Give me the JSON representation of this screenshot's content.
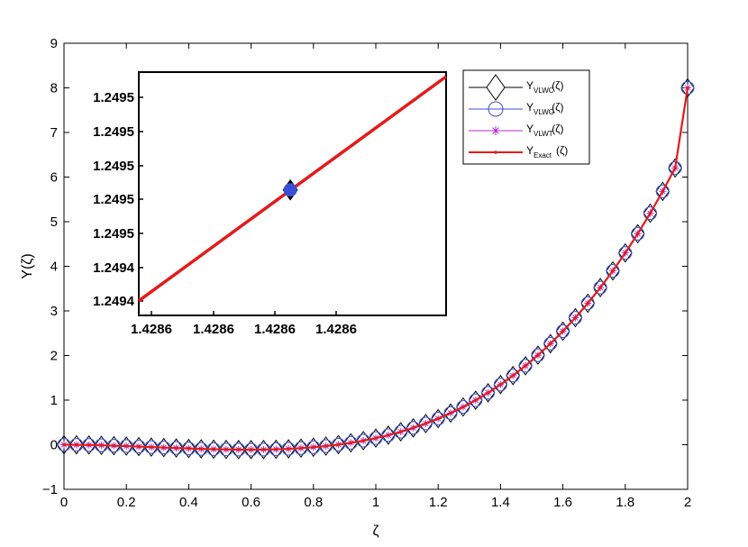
{
  "chart_data": [
    {
      "type": "line",
      "role": "main",
      "xlabel": "ζ",
      "ylabel": "Y(ζ)",
      "xlim": [
        0,
        2
      ],
      "ylim": [
        -1,
        9
      ],
      "x_ticks": [
        "0",
        "0.2",
        "0.4",
        "0.6",
        "0.8",
        "1",
        "1.2",
        "1.4",
        "1.6",
        "1.8",
        "2"
      ],
      "y_ticks": [
        "−1",
        "0",
        "1",
        "2",
        "3",
        "4",
        "5",
        "6",
        "7",
        "8",
        "9"
      ],
      "grid": false,
      "legend_position": "top-right",
      "x": [
        0,
        0.04,
        0.08,
        0.12,
        0.16,
        0.2,
        0.24,
        0.28,
        0.32,
        0.36,
        0.4,
        0.44,
        0.48,
        0.52,
        0.56,
        0.6,
        0.64,
        0.68,
        0.72,
        0.76,
        0.8,
        0.84,
        0.88,
        0.92,
        0.96,
        1.0,
        1.04,
        1.08,
        1.12,
        1.16,
        1.2,
        1.24,
        1.28,
        1.32,
        1.36,
        1.4,
        1.44,
        1.48,
        1.52,
        1.56,
        1.6,
        1.64,
        1.68,
        1.72,
        1.76,
        1.8,
        1.84,
        1.88,
        1.92,
        1.96,
        2.0
      ],
      "series": [
        {
          "name_main": "Y",
          "name_sub": "VLWC",
          "name_suffix": "(ζ)",
          "color": "#000000",
          "marker": "diamond",
          "values": [
            0,
            -0.002,
            -0.006,
            -0.013,
            -0.022,
            -0.031,
            -0.042,
            -0.053,
            -0.064,
            -0.074,
            -0.084,
            -0.093,
            -0.1,
            -0.106,
            -0.109,
            -0.11,
            -0.108,
            -0.102,
            -0.092,
            -0.077,
            -0.056,
            -0.03,
            0.003,
            0.043,
            0.091,
            0.148,
            0.214,
            0.29,
            0.377,
            0.475,
            0.585,
            0.709,
            0.846,
            0.998,
            1.165,
            1.349,
            1.55,
            1.769,
            2.007,
            2.266,
            2.545,
            2.847,
            3.172,
            3.522,
            3.897,
            4.299,
            4.729,
            5.189,
            5.68,
            6.204,
            8.0
          ]
        },
        {
          "name_main": "Y",
          "name_sub": "VLWG",
          "name_suffix": "(ζ)",
          "color": "#3a4fd6",
          "marker": "circle",
          "values": [
            0,
            -0.002,
            -0.006,
            -0.013,
            -0.022,
            -0.031,
            -0.042,
            -0.053,
            -0.064,
            -0.074,
            -0.084,
            -0.093,
            -0.1,
            -0.106,
            -0.109,
            -0.11,
            -0.108,
            -0.102,
            -0.092,
            -0.077,
            -0.056,
            -0.03,
            0.003,
            0.043,
            0.091,
            0.148,
            0.214,
            0.29,
            0.377,
            0.475,
            0.585,
            0.709,
            0.846,
            0.998,
            1.165,
            1.349,
            1.55,
            1.769,
            2.007,
            2.266,
            2.545,
            2.847,
            3.172,
            3.522,
            3.897,
            4.299,
            4.729,
            5.189,
            5.68,
            6.204,
            8.0
          ]
        },
        {
          "name_main": "Y",
          "name_sub": "VLWT",
          "name_suffix": "(ζ)",
          "color": "#b02fd0",
          "marker": "asterisk",
          "values": [
            0,
            -0.002,
            -0.006,
            -0.013,
            -0.022,
            -0.031,
            -0.042,
            -0.053,
            -0.064,
            -0.074,
            -0.084,
            -0.093,
            -0.1,
            -0.106,
            -0.109,
            -0.11,
            -0.108,
            -0.102,
            -0.092,
            -0.077,
            -0.056,
            -0.03,
            0.003,
            0.043,
            0.091,
            0.148,
            0.214,
            0.29,
            0.377,
            0.475,
            0.585,
            0.709,
            0.846,
            0.998,
            1.165,
            1.349,
            1.55,
            1.769,
            2.007,
            2.266,
            2.545,
            2.847,
            3.172,
            3.522,
            3.897,
            4.299,
            4.729,
            5.189,
            5.68,
            6.204,
            8.0
          ]
        },
        {
          "name_main": "Y",
          "name_sub": "Exact",
          "name_suffix": "(ζ)",
          "color": "#e41a1a",
          "marker": "dot",
          "values": [
            0,
            -0.002,
            -0.006,
            -0.013,
            -0.022,
            -0.031,
            -0.042,
            -0.053,
            -0.064,
            -0.074,
            -0.084,
            -0.093,
            -0.1,
            -0.106,
            -0.109,
            -0.11,
            -0.108,
            -0.102,
            -0.092,
            -0.077,
            -0.056,
            -0.03,
            0.003,
            0.043,
            0.091,
            0.148,
            0.214,
            0.29,
            0.377,
            0.475,
            0.585,
            0.709,
            0.846,
            0.998,
            1.165,
            1.349,
            1.55,
            1.769,
            2.007,
            2.266,
            2.545,
            2.847,
            3.172,
            3.522,
            3.897,
            4.299,
            4.729,
            5.189,
            5.68,
            6.204,
            8.0
          ]
        }
      ]
    },
    {
      "type": "line",
      "role": "inset",
      "x_ticks": [
        "1.4286",
        "1.4286",
        "1.4286",
        "1.4286"
      ],
      "y_ticks": [
        "1.2494",
        "1.2494",
        "1.2495",
        "1.2495",
        "1.2495",
        "1.2495",
        "1.2495"
      ],
      "grid": false,
      "line": {
        "color": "#e41a1a",
        "from": [
          0.0,
          0.0
        ],
        "to": [
          1.0,
          0.95
        ]
      },
      "marker_point": {
        "x": 0.493,
        "y": 0.47,
        "marker": "diamond",
        "fill": "#3a4fd6"
      }
    }
  ]
}
